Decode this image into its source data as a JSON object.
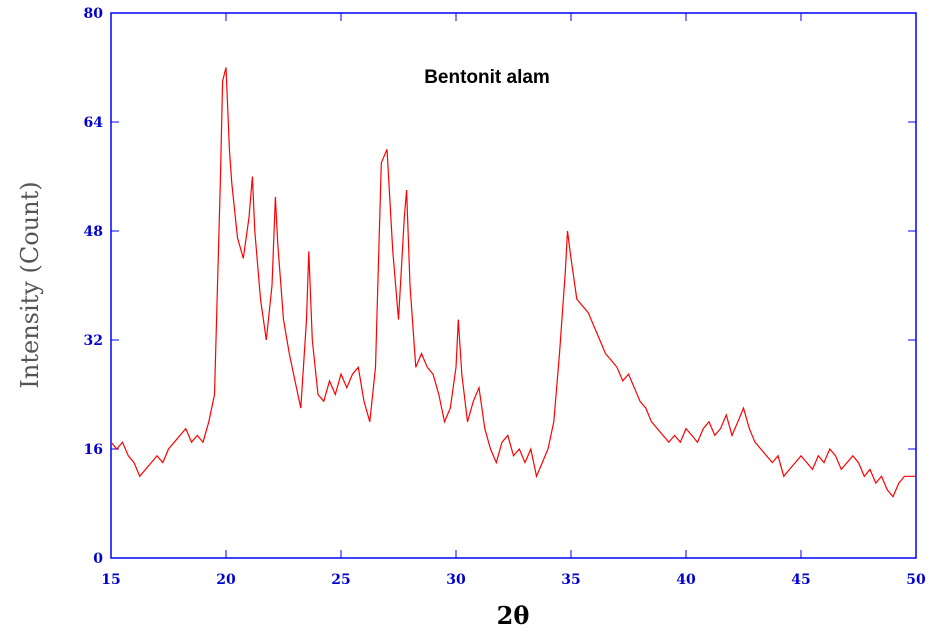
{
  "chart_data": {
    "type": "line",
    "title": "Bentonit alam",
    "x_label": "2θ",
    "y_label": "Intensity (Count)",
    "x": [
      15.0,
      15.25,
      15.5,
      15.75,
      16.0,
      16.25,
      16.5,
      16.75,
      17.0,
      17.25,
      17.5,
      17.75,
      18.0,
      18.25,
      18.5,
      18.75,
      19.0,
      19.25,
      19.5,
      19.75,
      19.85,
      20.0,
      20.15,
      20.25,
      20.5,
      20.75,
      21.0,
      21.15,
      21.25,
      21.5,
      21.75,
      22.0,
      22.15,
      22.25,
      22.5,
      22.75,
      23.0,
      23.25,
      23.5,
      23.6,
      23.75,
      24.0,
      24.25,
      24.5,
      24.75,
      25.0,
      25.25,
      25.5,
      25.75,
      26.0,
      26.25,
      26.5,
      26.75,
      27.0,
      27.25,
      27.5,
      27.75,
      27.85,
      28.0,
      28.25,
      28.5,
      28.75,
      29.0,
      29.25,
      29.5,
      29.75,
      30.0,
      30.1,
      30.25,
      30.5,
      30.75,
      31.0,
      31.25,
      31.5,
      31.75,
      32.0,
      32.25,
      32.5,
      32.75,
      33.0,
      33.25,
      33.5,
      33.75,
      34.0,
      34.25,
      34.5,
      34.75,
      34.85,
      35.0,
      35.25,
      35.5,
      35.75,
      36.0,
      36.25,
      36.5,
      36.75,
      37.0,
      37.25,
      37.5,
      37.75,
      38.0,
      38.25,
      38.5,
      38.75,
      39.0,
      39.25,
      39.5,
      39.75,
      40.0,
      40.25,
      40.5,
      40.75,
      41.0,
      41.25,
      41.5,
      41.75,
      42.0,
      42.25,
      42.5,
      42.75,
      43.0,
      43.25,
      43.5,
      43.75,
      44.0,
      44.25,
      44.5,
      44.75,
      45.0,
      45.25,
      45.5,
      45.75,
      46.0,
      46.25,
      46.5,
      46.75,
      47.0,
      47.25,
      47.5,
      47.75,
      48.0,
      48.25,
      48.5,
      48.75,
      49.0,
      49.25,
      49.5,
      49.75,
      50.0
    ],
    "series": [
      {
        "name": "Bentonit alam",
        "color": "#ff0000",
        "values": [
          17,
          16,
          17,
          15,
          14,
          12,
          13,
          14,
          15,
          14,
          16,
          17,
          18,
          19,
          17,
          18,
          17,
          20,
          24,
          55,
          70,
          72,
          60,
          55,
          47,
          44,
          50,
          56,
          48,
          38,
          32,
          40,
          53,
          46,
          35,
          30,
          26,
          22,
          35,
          45,
          32,
          24,
          23,
          26,
          24,
          27,
          25,
          27,
          28,
          23,
          20,
          28,
          58,
          60,
          45,
          35,
          50,
          54,
          40,
          28,
          30,
          28,
          27,
          24,
          20,
          22,
          28,
          35,
          27,
          20,
          23,
          25,
          19,
          16,
          14,
          17,
          18,
          15,
          16,
          14,
          16,
          12,
          14,
          16,
          20,
          30,
          42,
          48,
          44,
          38,
          37,
          36,
          34,
          32,
          30,
          29,
          28,
          26,
          27,
          25,
          23,
          22,
          20,
          19,
          18,
          17,
          18,
          17,
          19,
          18,
          17,
          19,
          20,
          18,
          19,
          21,
          18,
          20,
          22,
          19,
          17,
          16,
          15,
          14,
          15,
          12,
          13,
          14,
          15,
          14,
          13,
          15,
          14,
          16,
          15,
          13,
          14,
          15,
          14,
          12,
          13,
          11,
          12,
          10,
          9,
          11,
          12,
          12,
          12
        ]
      }
    ],
    "xlim": [
      15,
      50
    ],
    "ylim": [
      0,
      80
    ],
    "xticks": [
      15,
      20,
      25,
      30,
      35,
      40,
      45,
      50
    ],
    "yticks": [
      0,
      16,
      32,
      48,
      64,
      80
    ]
  }
}
